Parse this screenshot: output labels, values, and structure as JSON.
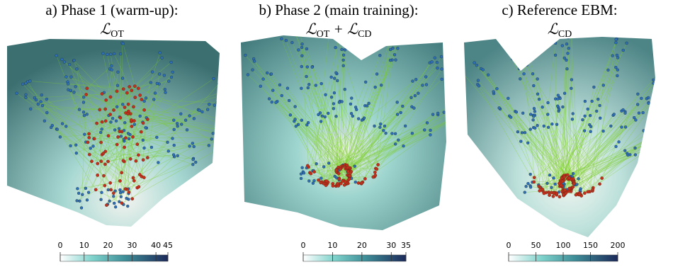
{
  "panels": [
    {
      "title": "a) Phase 1 (warm-up):",
      "formula": [
        {
          "text": "ℒ",
          "sub": "OT"
        }
      ],
      "colorbar": {
        "lim": [
          0,
          45
        ],
        "ticks": [
          0,
          10,
          20,
          30,
          40,
          45
        ]
      }
    },
    {
      "title": "b) Phase 2 (main training):",
      "formula": [
        {
          "text": "ℒ",
          "sub": "OT"
        },
        {
          "text": " + "
        },
        {
          "text": "ℒ",
          "sub": "CD"
        }
      ],
      "colorbar": {
        "lim": [
          0,
          35
        ],
        "ticks": [
          0,
          10,
          20,
          30,
          35
        ]
      }
    },
    {
      "title": "c) Reference EBM:",
      "formula": [
        {
          "text": "ℒ",
          "sub": "CD"
        }
      ],
      "colorbar": {
        "lim": [
          0,
          200
        ],
        "ticks": [
          0,
          50,
          100,
          150,
          200
        ]
      }
    }
  ]
}
